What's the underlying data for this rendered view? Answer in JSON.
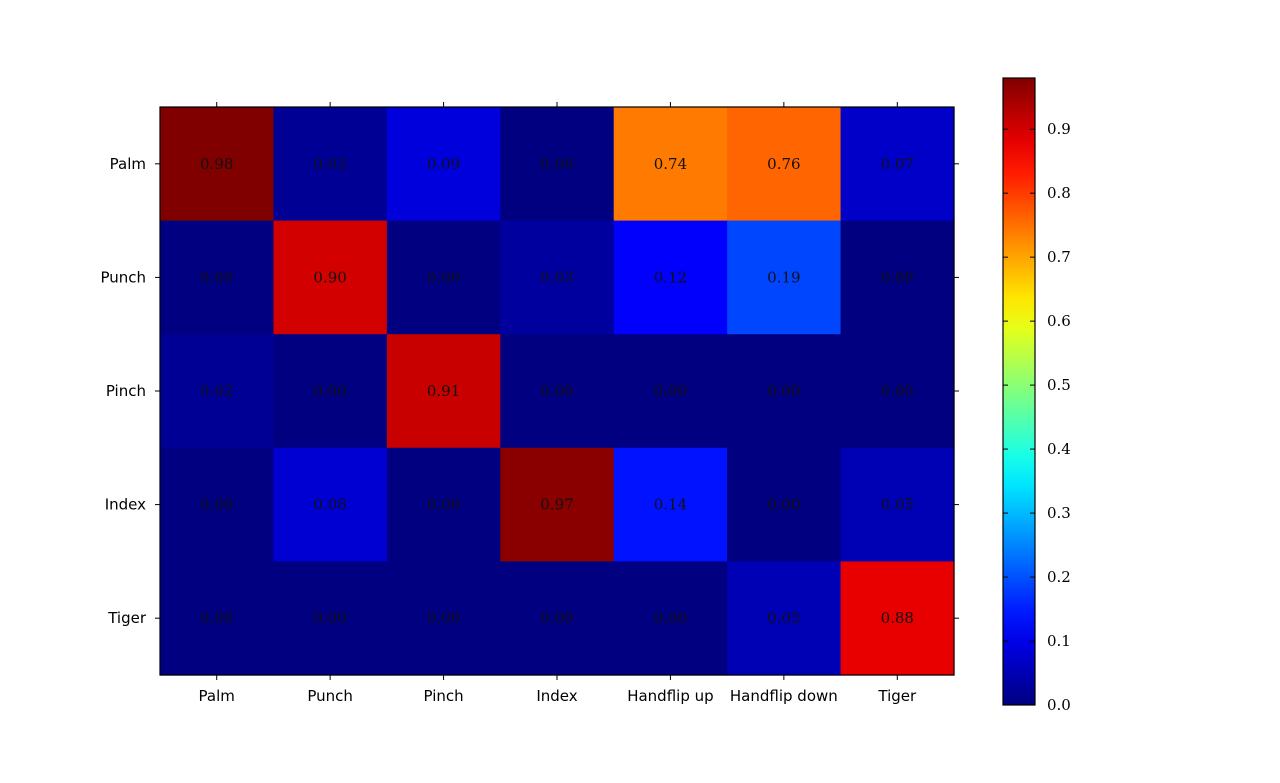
{
  "chart_data": {
    "type": "heatmap",
    "title": "",
    "xlabel": "",
    "ylabel": "",
    "x_categories": [
      "Palm",
      "Punch",
      "Pinch",
      "Index",
      "Handflip up",
      "Handflip down",
      "Tiger"
    ],
    "y_categories": [
      "Palm",
      "Punch",
      "Pinch",
      "Index",
      "Tiger"
    ],
    "values": [
      [
        0.98,
        0.02,
        0.09,
        0.0,
        0.74,
        0.76,
        0.07
      ],
      [
        0.0,
        0.9,
        0.0,
        0.03,
        0.12,
        0.19,
        0.0
      ],
      [
        0.02,
        0.0,
        0.91,
        0.0,
        0.0,
        0.0,
        0.0
      ],
      [
        0.0,
        0.08,
        0.0,
        0.97,
        0.14,
        0.0,
        0.05
      ],
      [
        0.0,
        0.0,
        0.0,
        0.0,
        0.0,
        0.05,
        0.88
      ]
    ],
    "value_labels": [
      [
        "0.98",
        "0.02",
        "0.09",
        "0.00",
        "0.74",
        "0.76",
        "0.07"
      ],
      [
        "0.00",
        "0.90",
        "0.00",
        "0.03",
        "0.12",
        "0.19",
        "0.00"
      ],
      [
        "0.02",
        "0.00",
        "0.91",
        "0.00",
        "0.00",
        "0.00",
        "0.00"
      ],
      [
        "0.00",
        "0.08",
        "0.00",
        "0.97",
        "0.14",
        "0.00",
        "0.05"
      ],
      [
        "0.00",
        "0.00",
        "0.00",
        "0.00",
        "0.00",
        "0.05",
        "0.88"
      ]
    ],
    "colormap": "jet",
    "color_range": [
      0.0,
      0.98
    ],
    "colorbar": {
      "ticks": [
        0.0,
        0.1,
        0.2,
        0.3,
        0.4,
        0.5,
        0.6,
        0.7,
        0.8,
        0.9
      ],
      "tick_labels": [
        "0.0",
        "0.1",
        "0.2",
        "0.3",
        "0.4",
        "0.5",
        "0.6",
        "0.7",
        "0.8",
        "0.9"
      ]
    },
    "grid": false,
    "legend": "colorbar-right"
  }
}
